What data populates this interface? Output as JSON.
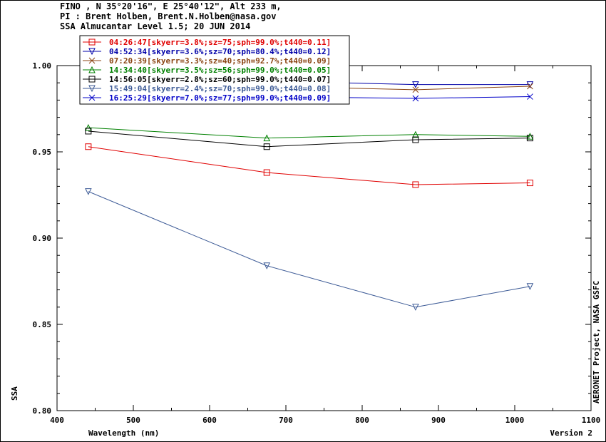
{
  "header": {
    "line1": "FINO , N 35°20'16\", E 25°40'12\", Alt 233 m,",
    "line2": "PI : Brent Holben, Brent.N.Holben@nasa.gov",
    "line3": "SSA Almucantar Level 1.5; 20 JUN 2014"
  },
  "chart_data": {
    "type": "line",
    "title": "SSA Almucantar Level 1.5; 20 JUN 2014",
    "xlabel": "Wavelength (nm)",
    "ylabel": "SSA",
    "xlim": [
      400,
      1100
    ],
    "ylim": [
      0.8,
      1.0
    ],
    "x_ticks": [
      "400",
      "500",
      "600",
      "700",
      "800",
      "900",
      "1000",
      "1100"
    ],
    "y_ticks": [
      "0.80",
      "0.85",
      "0.90",
      "0.95",
      "1.00"
    ],
    "x_tick_values": [
      400,
      500,
      600,
      700,
      800,
      900,
      1000,
      1100
    ],
    "y_tick_values": [
      0.8,
      0.85,
      0.9,
      0.95,
      1.0
    ],
    "x": [
      441,
      675,
      870,
      1020
    ],
    "legend_position": "top-left",
    "series": [
      {
        "name": "04:26:47[skyerr=3.8%;sz=75;sph=99.0%;t440=0.11]",
        "color": "#e00000",
        "marker": "square",
        "values": [
          0.953,
          0.938,
          0.931,
          0.932
        ]
      },
      {
        "name": "04:52:34[skyerr=3.6%;sz=70;sph=80.4%;t440=0.12]",
        "color": "#0000a8",
        "marker": "triangle-down",
        "values": [
          0.99,
          0.991,
          0.989,
          0.989
        ]
      },
      {
        "name": "07:20:39[skyerr=3.3%;sz=40;sph=92.7%;t440=0.09]",
        "color": "#8b4513",
        "marker": "x",
        "values": [
          0.987,
          0.988,
          0.986,
          0.988
        ]
      },
      {
        "name": "14:34:40[skyerr=3.5%;sz=56;sph=99.0%;t440=0.05]",
        "color": "#008000",
        "marker": "triangle-up",
        "values": [
          0.964,
          0.958,
          0.96,
          0.959
        ]
      },
      {
        "name": "14:56:05[skyerr=2.8%;sz=60;sph=99.0%;t440=0.07]",
        "color": "#000000",
        "marker": "square",
        "values": [
          0.962,
          0.953,
          0.957,
          0.958
        ]
      },
      {
        "name": "15:49:04[skyerr=2.4%;sz=70;sph=99.0%;t440=0.08]",
        "color": "#3c5a96",
        "marker": "triangle-down",
        "values": [
          0.927,
          0.884,
          0.86,
          0.872
        ]
      },
      {
        "name": "16:25:29[skyerr=7.0%;sz=77;sph=99.0%;t440=0.09]",
        "color": "#0000c8",
        "marker": "x",
        "values": [
          0.984,
          0.982,
          0.981,
          0.982
        ]
      }
    ]
  },
  "side_text": "AERONET Project, NASA GSFC",
  "version_text": "Version 2"
}
